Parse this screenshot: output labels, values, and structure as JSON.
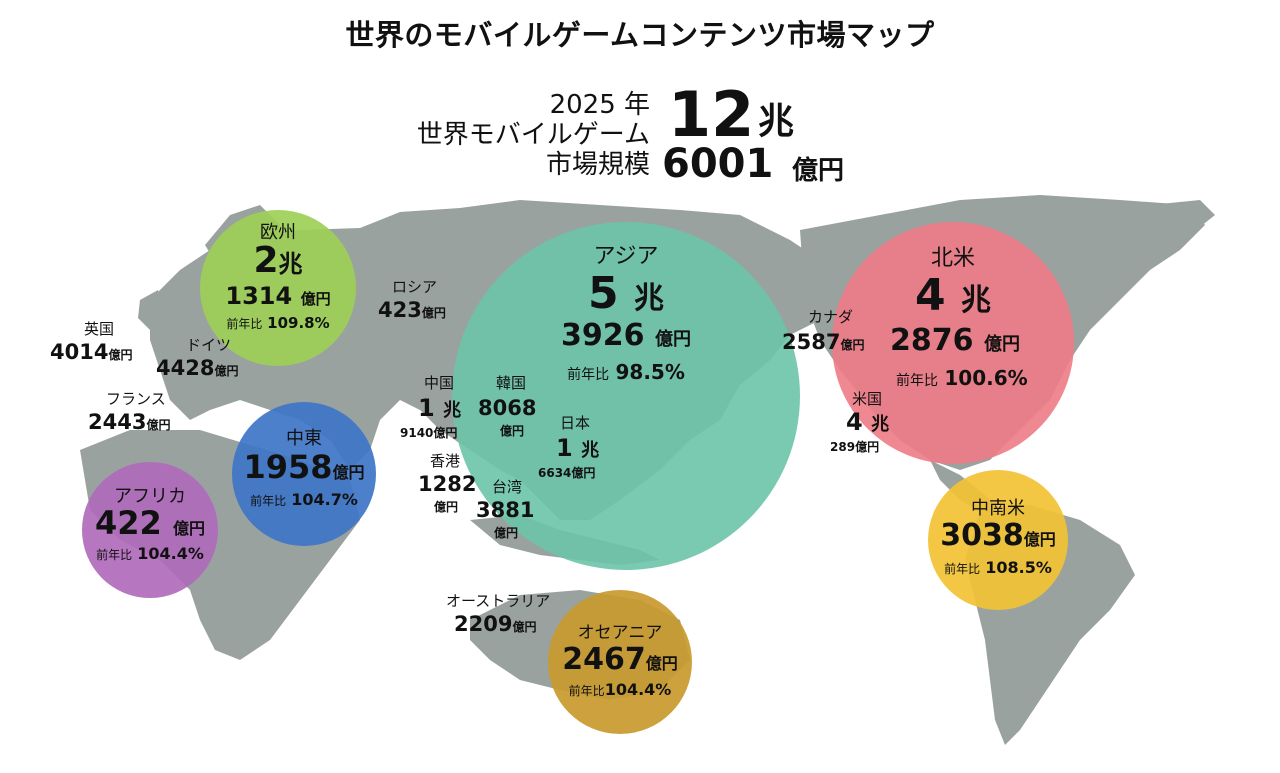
{
  "title": "世界のモバイルゲームコンテンツ市場マップ",
  "total": {
    "year_label": "2025 年",
    "line2": "世界モバイルゲーム",
    "line3": "市場規模",
    "cho_num": "12",
    "cho_unit": "兆",
    "oku_num": "6001",
    "oku_unit": "億円"
  },
  "regions": {
    "europe": {
      "name": "欧州",
      "cho": "2",
      "cho_unit": "兆",
      "oku": "1314",
      "oku_unit": "億円",
      "yoy_label": "前年比",
      "yoy": "109.8%",
      "color": "#9dcf57"
    },
    "asia": {
      "name": "アジア",
      "cho": "5",
      "cho_unit": "兆",
      "oku": "3926",
      "oku_unit": "億円",
      "yoy_label": "前年比",
      "yoy": "98.5%",
      "color": "#6cc4a9"
    },
    "north_america": {
      "name": "北米",
      "cho": "4",
      "cho_unit": "兆",
      "oku": "2876",
      "oku_unit": "億円",
      "yoy_label": "前年比",
      "yoy": "100.6%",
      "color": "#ee7b86"
    },
    "middle_east": {
      "name": "中東",
      "oku": "1958",
      "oku_unit": "億円",
      "yoy_label": "前年比",
      "yoy": "104.7%",
      "color": "#3e75c7"
    },
    "africa": {
      "name": "アフリカ",
      "oku": "422",
      "oku_unit": "億円",
      "yoy_label": "前年比",
      "yoy": "104.4%",
      "color": "#b06abb"
    },
    "latin_america": {
      "name": "中南米",
      "oku": "3038",
      "oku_unit": "億円",
      "yoy_label": "前年比",
      "yoy": "108.5%",
      "color": "#f2c234"
    },
    "oceania": {
      "name": "オセアニア",
      "oku": "2467",
      "oku_unit": "億円",
      "yoy_label": "前年比",
      "yoy": "104.4%",
      "color": "#c99a2e"
    }
  },
  "countries": {
    "uk": {
      "name": "英国",
      "value": "4014",
      "unit": "億円"
    },
    "germany": {
      "name": "ドイツ",
      "value": "4428",
      "unit": "億円"
    },
    "france": {
      "name": "フランス",
      "value": "2443",
      "unit": "億円"
    },
    "russia": {
      "name": "ロシア",
      "value": "423",
      "unit": "億円"
    },
    "china": {
      "name": "中国",
      "cho": "1",
      "cho_unit": "兆",
      "value": "9140",
      "unit": "億円"
    },
    "korea": {
      "name": "韓国",
      "value": "8068",
      "unit": "億円"
    },
    "japan": {
      "name": "日本",
      "cho": "1",
      "cho_unit": "兆",
      "value": "6634",
      "unit": "億円"
    },
    "hongkong": {
      "name": "香港",
      "value": "1282",
      "unit": "億円"
    },
    "taiwan": {
      "name": "台湾",
      "value": "3881",
      "unit": "億円"
    },
    "australia": {
      "name": "オーストラリア",
      "value": "2209",
      "unit": "億円"
    },
    "canada": {
      "name": "カナダ",
      "value": "2587",
      "unit": "億円"
    },
    "usa": {
      "name": "米国",
      "cho": "4",
      "cho_unit": "兆",
      "value": "289",
      "unit": "億円"
    }
  },
  "colors": {
    "land": "#9aa2a0",
    "text": "#111111"
  }
}
